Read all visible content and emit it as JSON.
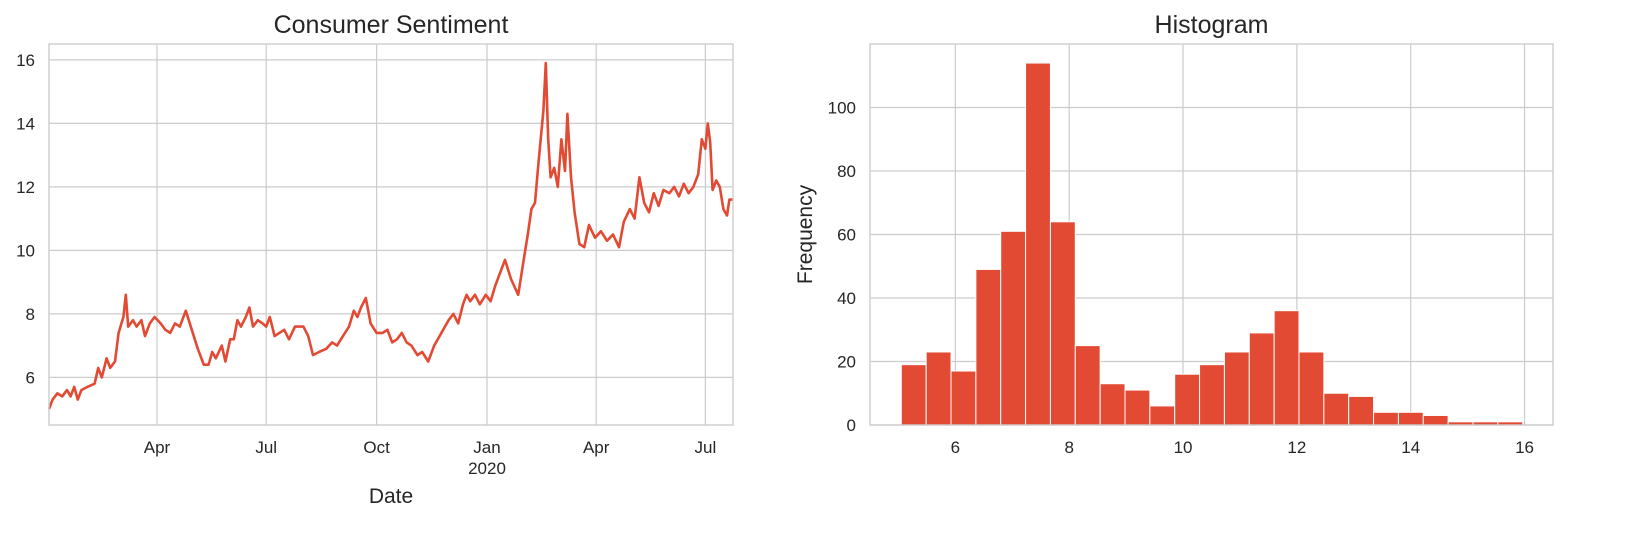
{
  "chart_data": [
    {
      "type": "line",
      "title": "Consumer Sentiment",
      "xlabel": "Date",
      "ylabel": "",
      "color": "#e24a33",
      "grid": true,
      "ylim": [
        4.5,
        16.5
      ],
      "yticks": [
        6,
        8,
        10,
        12,
        14,
        16
      ],
      "xlim": [
        "2019-01-01",
        "2020-07-24"
      ],
      "xticks": [
        {
          "date": "2019-04-01",
          "label": "Apr",
          "sublabel": ""
        },
        {
          "date": "2019-07-01",
          "label": "Jul",
          "sublabel": ""
        },
        {
          "date": "2019-10-01",
          "label": "Oct",
          "sublabel": ""
        },
        {
          "date": "2020-01-01",
          "label": "Jan",
          "sublabel": "2020"
        },
        {
          "date": "2020-04-01",
          "label": "Apr",
          "sublabel": ""
        },
        {
          "date": "2020-07-01",
          "label": "Jul",
          "sublabel": ""
        }
      ],
      "series": [
        {
          "points": [
            [
              "2019-01-01",
              5.0
            ],
            [
              "2019-01-04",
              5.3
            ],
            [
              "2019-01-08",
              5.5
            ],
            [
              "2019-01-12",
              5.4
            ],
            [
              "2019-01-16",
              5.6
            ],
            [
              "2019-01-19",
              5.4
            ],
            [
              "2019-01-22",
              5.7
            ],
            [
              "2019-01-25",
              5.3
            ],
            [
              "2019-01-28",
              5.6
            ],
            [
              "2019-02-02",
              5.7
            ],
            [
              "2019-02-08",
              5.8
            ],
            [
              "2019-02-11",
              6.3
            ],
            [
              "2019-02-14",
              6.0
            ],
            [
              "2019-02-18",
              6.6
            ],
            [
              "2019-02-21",
              6.3
            ],
            [
              "2019-02-25",
              6.5
            ],
            [
              "2019-02-28",
              7.4
            ],
            [
              "2019-03-04",
              7.9
            ],
            [
              "2019-03-06",
              8.6
            ],
            [
              "2019-03-08",
              7.6
            ],
            [
              "2019-03-12",
              7.8
            ],
            [
              "2019-03-15",
              7.6
            ],
            [
              "2019-03-19",
              7.8
            ],
            [
              "2019-03-22",
              7.3
            ],
            [
              "2019-03-26",
              7.7
            ],
            [
              "2019-03-30",
              7.9
            ],
            [
              "2019-04-04",
              7.7
            ],
            [
              "2019-04-08",
              7.5
            ],
            [
              "2019-04-12",
              7.4
            ],
            [
              "2019-04-16",
              7.7
            ],
            [
              "2019-04-20",
              7.6
            ],
            [
              "2019-04-25",
              8.1
            ],
            [
              "2019-04-30",
              7.5
            ],
            [
              "2019-05-05",
              6.9
            ],
            [
              "2019-05-10",
              6.4
            ],
            [
              "2019-05-14",
              6.4
            ],
            [
              "2019-05-17",
              6.8
            ],
            [
              "2019-05-20",
              6.6
            ],
            [
              "2019-05-25",
              7.0
            ],
            [
              "2019-05-28",
              6.5
            ],
            [
              "2019-06-01",
              7.2
            ],
            [
              "2019-06-04",
              7.2
            ],
            [
              "2019-06-07",
              7.8
            ],
            [
              "2019-06-10",
              7.6
            ],
            [
              "2019-06-14",
              7.9
            ],
            [
              "2019-06-17",
              8.2
            ],
            [
              "2019-06-20",
              7.6
            ],
            [
              "2019-06-24",
              7.8
            ],
            [
              "2019-06-28",
              7.7
            ],
            [
              "2019-07-01",
              7.6
            ],
            [
              "2019-07-04",
              7.9
            ],
            [
              "2019-07-08",
              7.3
            ],
            [
              "2019-07-12",
              7.4
            ],
            [
              "2019-07-16",
              7.5
            ],
            [
              "2019-07-20",
              7.2
            ],
            [
              "2019-07-25",
              7.6
            ],
            [
              "2019-08-01",
              7.6
            ],
            [
              "2019-08-05",
              7.3
            ],
            [
              "2019-08-09",
              6.7
            ],
            [
              "2019-08-14",
              6.8
            ],
            [
              "2019-08-20",
              6.9
            ],
            [
              "2019-08-25",
              7.1
            ],
            [
              "2019-08-29",
              7.0
            ],
            [
              "2019-09-03",
              7.3
            ],
            [
              "2019-09-08",
              7.6
            ],
            [
              "2019-09-12",
              8.1
            ],
            [
              "2019-09-15",
              7.9
            ],
            [
              "2019-09-18",
              8.2
            ],
            [
              "2019-09-22",
              8.5
            ],
            [
              "2019-09-26",
              7.7
            ],
            [
              "2019-10-01",
              7.4
            ],
            [
              "2019-10-06",
              7.4
            ],
            [
              "2019-10-10",
              7.5
            ],
            [
              "2019-10-14",
              7.1
            ],
            [
              "2019-10-18",
              7.2
            ],
            [
              "2019-10-22",
              7.4
            ],
            [
              "2019-10-26",
              7.1
            ],
            [
              "2019-10-30",
              7.0
            ],
            [
              "2019-11-04",
              6.7
            ],
            [
              "2019-11-08",
              6.8
            ],
            [
              "2019-11-13",
              6.5
            ],
            [
              "2019-11-18",
              7.0
            ],
            [
              "2019-11-24",
              7.4
            ],
            [
              "2019-11-30",
              7.8
            ],
            [
              "2019-12-04",
              8.0
            ],
            [
              "2019-12-08",
              7.7
            ],
            [
              "2019-12-12",
              8.3
            ],
            [
              "2019-12-15",
              8.6
            ],
            [
              "2019-12-18",
              8.4
            ],
            [
              "2019-12-22",
              8.6
            ],
            [
              "2019-12-26",
              8.3
            ],
            [
              "2019-12-31",
              8.6
            ],
            [
              "2020-01-04",
              8.4
            ],
            [
              "2020-01-08",
              8.9
            ],
            [
              "2020-01-12",
              9.3
            ],
            [
              "2020-01-16",
              9.7
            ],
            [
              "2020-01-21",
              9.1
            ],
            [
              "2020-01-27",
              8.6
            ],
            [
              "2020-02-01",
              9.8
            ],
            [
              "2020-02-04",
              10.5
            ],
            [
              "2020-02-07",
              11.3
            ],
            [
              "2020-02-10",
              11.5
            ],
            [
              "2020-02-13",
              12.8
            ],
            [
              "2020-02-17",
              14.4
            ],
            [
              "2020-02-19",
              15.9
            ],
            [
              "2020-02-21",
              13.5
            ],
            [
              "2020-02-23",
              12.3
            ],
            [
              "2020-02-26",
              12.6
            ],
            [
              "2020-02-29",
              12.0
            ],
            [
              "2020-03-03",
              13.5
            ],
            [
              "2020-03-06",
              12.5
            ],
            [
              "2020-03-08",
              14.3
            ],
            [
              "2020-03-11",
              12.3
            ],
            [
              "2020-03-14",
              11.2
            ],
            [
              "2020-03-18",
              10.2
            ],
            [
              "2020-03-22",
              10.1
            ],
            [
              "2020-03-26",
              10.8
            ],
            [
              "2020-03-31",
              10.4
            ],
            [
              "2020-04-05",
              10.6
            ],
            [
              "2020-04-10",
              10.3
            ],
            [
              "2020-04-15",
              10.5
            ],
            [
              "2020-04-20",
              10.1
            ],
            [
              "2020-04-24",
              10.9
            ],
            [
              "2020-04-29",
              11.3
            ],
            [
              "2020-05-03",
              11.0
            ],
            [
              "2020-05-07",
              12.3
            ],
            [
              "2020-05-11",
              11.5
            ],
            [
              "2020-05-15",
              11.2
            ],
            [
              "2020-05-19",
              11.8
            ],
            [
              "2020-05-23",
              11.4
            ],
            [
              "2020-05-27",
              11.9
            ],
            [
              "2020-06-01",
              11.8
            ],
            [
              "2020-06-05",
              12.0
            ],
            [
              "2020-06-09",
              11.7
            ],
            [
              "2020-06-13",
              12.1
            ],
            [
              "2020-06-17",
              11.8
            ],
            [
              "2020-06-21",
              12.0
            ],
            [
              "2020-06-25",
              12.4
            ],
            [
              "2020-06-28",
              13.5
            ],
            [
              "2020-07-01",
              13.2
            ],
            [
              "2020-07-03",
              14.0
            ],
            [
              "2020-07-05",
              13.4
            ],
            [
              "2020-07-07",
              11.9
            ],
            [
              "2020-07-10",
              12.2
            ],
            [
              "2020-07-13",
              12.0
            ],
            [
              "2020-07-16",
              11.3
            ],
            [
              "2020-07-19",
              11.1
            ],
            [
              "2020-07-21",
              11.6
            ],
            [
              "2020-07-24",
              11.6
            ]
          ]
        }
      ]
    },
    {
      "type": "bar",
      "subtype": "histogram",
      "title": "Histogram",
      "xlabel": "",
      "ylabel": "Frequency",
      "color": "#e24a33",
      "grid": true,
      "xlim": [
        4.5,
        16.5
      ],
      "ylim": [
        0,
        120
      ],
      "xticks": [
        6,
        8,
        10,
        12,
        14,
        16
      ],
      "yticks": [
        0,
        20,
        40,
        60,
        80,
        100
      ],
      "bin_start": 5.05,
      "bin_width": 0.4367,
      "values": [
        19,
        23,
        17,
        49,
        61,
        114,
        64,
        25,
        13,
        11,
        6,
        16,
        19,
        23,
        29,
        36,
        23,
        10,
        9,
        4,
        4,
        3,
        1,
        1,
        1
      ]
    }
  ]
}
